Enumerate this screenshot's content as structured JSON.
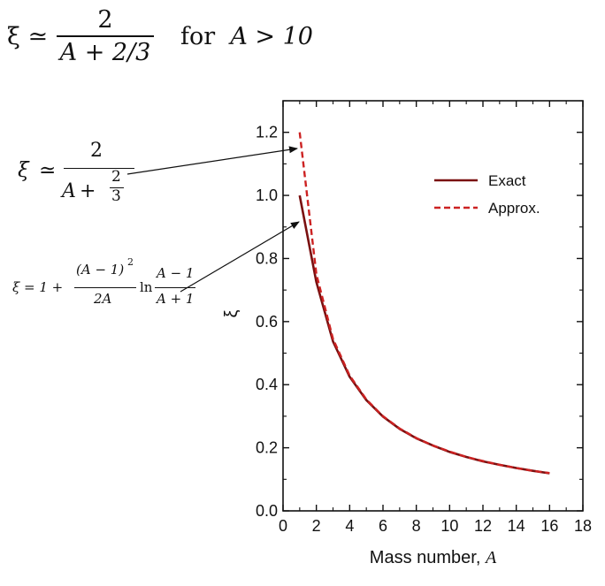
{
  "formulas": {
    "top": {
      "lhs": "ξ ≃",
      "numerator": "2",
      "denominator": "A + 2/3",
      "condition_text": "for",
      "condition_math": "A > 10"
    },
    "approx": {
      "lhs": "ξ",
      "rel": "≃",
      "numerator": "2",
      "denominator_A": "A",
      "plus": "+",
      "frac_num": "2",
      "frac_den": "3"
    },
    "exact": {
      "lhs": "ξ = 1 +",
      "num": "(A − 1)",
      "exp": "2",
      "den": "2A",
      "ln": "ln",
      "num2": "A − 1",
      "den2": "A + 1"
    }
  },
  "chart_data": {
    "type": "line",
    "xlabel": "Mass number,",
    "xlabel_var": "A",
    "ylabel": "ξ",
    "xlim": [
      0,
      18
    ],
    "ylim": [
      0,
      1.3
    ],
    "xticks": [
      0,
      2,
      4,
      6,
      8,
      10,
      12,
      14,
      16,
      18
    ],
    "yticks": [
      0.0,
      0.2,
      0.4,
      0.6,
      0.8,
      1.0,
      1.2
    ],
    "ytick_labels": [
      "0.0",
      "0.2",
      "0.4",
      "0.6",
      "0.8",
      "1.0",
      "1.2"
    ],
    "grid": false,
    "legend_position": "top-right",
    "series": [
      {
        "name": "Exact",
        "color": "#7a1010",
        "style": "solid",
        "x": [
          1,
          2,
          3,
          4,
          5,
          6,
          7,
          8,
          9,
          10,
          11,
          12,
          13,
          14,
          15,
          16
        ],
        "y": [
          1.0,
          0.725,
          0.537,
          0.425,
          0.351,
          0.299,
          0.26,
          0.23,
          0.207,
          0.187,
          0.171,
          0.157,
          0.146,
          0.136,
          0.127,
          0.119
        ]
      },
      {
        "name": "Approx.",
        "color": "#cc2222",
        "style": "dashed",
        "x": [
          1,
          2,
          3,
          4,
          5,
          6,
          7,
          8,
          9,
          10,
          11,
          12,
          13,
          14,
          15,
          16
        ],
        "y": [
          1.2,
          0.75,
          0.545,
          0.429,
          0.353,
          0.3,
          0.261,
          0.231,
          0.207,
          0.188,
          0.171,
          0.158,
          0.146,
          0.136,
          0.127,
          0.12
        ]
      }
    ]
  }
}
